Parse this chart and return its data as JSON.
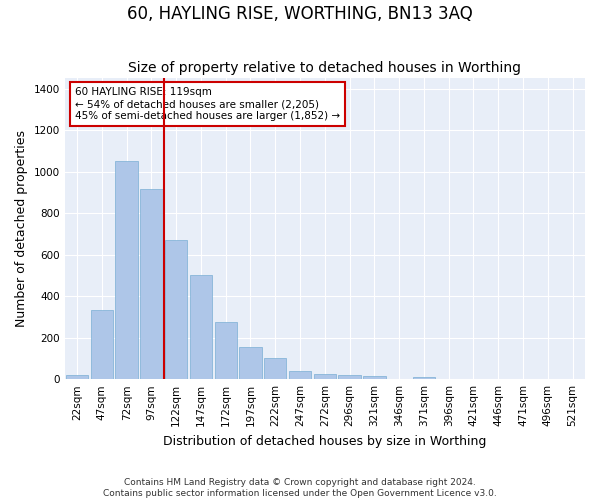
{
  "title": "60, HAYLING RISE, WORTHING, BN13 3AQ",
  "subtitle": "Size of property relative to detached houses in Worthing",
  "xlabel": "Distribution of detached houses by size in Worthing",
  "ylabel": "Number of detached properties",
  "footer_line1": "Contains HM Land Registry data © Crown copyright and database right 2024.",
  "footer_line2": "Contains public sector information licensed under the Open Government Licence v3.0.",
  "categories": [
    "22sqm",
    "47sqm",
    "72sqm",
    "97sqm",
    "122sqm",
    "147sqm",
    "172sqm",
    "197sqm",
    "222sqm",
    "247sqm",
    "272sqm",
    "296sqm",
    "321sqm",
    "346sqm",
    "371sqm",
    "396sqm",
    "421sqm",
    "446sqm",
    "471sqm",
    "496sqm",
    "521sqm"
  ],
  "values": [
    20,
    335,
    1050,
    915,
    670,
    500,
    278,
    155,
    103,
    38,
    25,
    20,
    15,
    0,
    12,
    0,
    0,
    0,
    0,
    0,
    0
  ],
  "bar_color": "#aec6e8",
  "bar_edge_color": "#7aafd4",
  "vline_x_index": 4,
  "vline_color": "#cc0000",
  "annotation_text": "60 HAYLING RISE: 119sqm\n← 54% of detached houses are smaller (2,205)\n45% of semi-detached houses are larger (1,852) →",
  "annotation_box_facecolor": "#ffffff",
  "annotation_box_edgecolor": "#cc0000",
  "ylim": [
    0,
    1450
  ],
  "yticks": [
    0,
    200,
    400,
    600,
    800,
    1000,
    1200,
    1400
  ],
  "plot_bg_color": "#e8eef8",
  "title_fontsize": 12,
  "subtitle_fontsize": 10,
  "axis_label_fontsize": 9,
  "tick_fontsize": 7.5,
  "footer_fontsize": 6.5
}
